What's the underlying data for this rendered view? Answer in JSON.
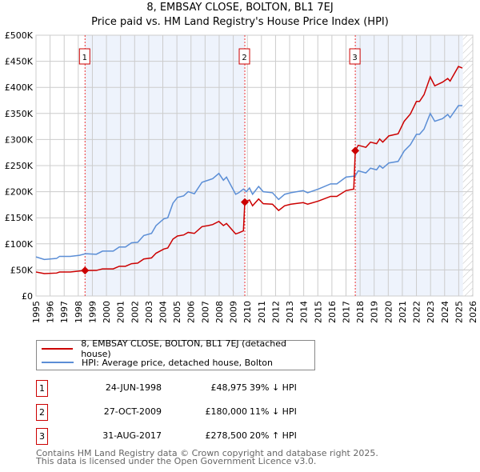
{
  "title": "8, EMBSAY CLOSE, BOLTON, BL1 7EJ",
  "subtitle": "Price paid vs. HM Land Registry's House Price Index (HPI)",
  "chart_data": {
    "type": "line",
    "xlim": [
      1995,
      2026
    ],
    "ylim": [
      0,
      500000
    ],
    "y_ticks": [
      {
        "v": 0,
        "l": "£0"
      },
      {
        "v": 50000,
        "l": "£50K"
      },
      {
        "v": 100000,
        "l": "£100K"
      },
      {
        "v": 150000,
        "l": "£150K"
      },
      {
        "v": 200000,
        "l": "£200K"
      },
      {
        "v": 250000,
        "l": "£250K"
      },
      {
        "v": 300000,
        "l": "£300K"
      },
      {
        "v": 350000,
        "l": "£350K"
      },
      {
        "v": 400000,
        "l": "£400K"
      },
      {
        "v": 450000,
        "l": "£450K"
      },
      {
        "v": 500000,
        "l": "£500K"
      }
    ],
    "x_ticks": [
      "1995",
      "1996",
      "1997",
      "1998",
      "1999",
      "2000",
      "2001",
      "2002",
      "2003",
      "2004",
      "2005",
      "2006",
      "2007",
      "2008",
      "2009",
      "2010",
      "2011",
      "2012",
      "2013",
      "2014",
      "2015",
      "2016",
      "2017",
      "2018",
      "2019",
      "2020",
      "2021",
      "2022",
      "2023",
      "2024",
      "2025",
      "2026"
    ],
    "forecast_from": 2025.3,
    "series": [
      {
        "name": "8, EMBSAY CLOSE, BOLTON, BL1 7EJ (detached house)",
        "color": "#cc0000",
        "x": [
          1995.0,
          1995.59,
          1996.46,
          1996.67,
          1997.43,
          1998.09,
          1998.48,
          1999.28,
          1999.72,
          2000.48,
          2000.91,
          2001.35,
          2001.78,
          2002.22,
          2002.65,
          2003.2,
          2003.52,
          2004.07,
          2004.35,
          2004.72,
          2005.04,
          2005.48,
          2005.8,
          2006.24,
          2006.78,
          2007.22,
          2007.54,
          2007.98,
          2008.3,
          2008.52,
          2009.17,
          2009.39,
          2009.72,
          2009.82,
          2010.15,
          2010.37,
          2010.8,
          2011.13,
          2011.78,
          2012.22,
          2012.65,
          2013.09,
          2013.96,
          2014.28,
          2015.04,
          2015.91,
          2016.35,
          2017.0,
          2017.55,
          2017.66,
          2017.87,
          2018.41,
          2018.74,
          2019.17,
          2019.39,
          2019.61,
          2020.04,
          2020.7,
          2021.13,
          2021.57,
          2022.0,
          2022.22,
          2022.54,
          2022.98,
          2023.3,
          2023.85,
          2024.22,
          2024.39,
          2024.98,
          2025.26
        ],
        "y": [
          46000,
          43000,
          44000,
          46000,
          46000,
          48000,
          48975,
          49000,
          52000,
          52000,
          57000,
          57000,
          62000,
          63000,
          71000,
          73000,
          82000,
          90000,
          92000,
          109000,
          115000,
          117000,
          122000,
          120000,
          133000,
          135000,
          137000,
          143000,
          135000,
          139000,
          119000,
          121000,
          125000,
          180000,
          184000,
          173000,
          186000,
          177000,
          176000,
          164000,
          173000,
          176000,
          179000,
          176000,
          182000,
          191000,
          191000,
          202000,
          205000,
          278500,
          289000,
          285000,
          295000,
          292000,
          301000,
          295000,
          307000,
          311000,
          335000,
          349000,
          373000,
          373000,
          386000,
          420000,
          403000,
          410000,
          417000,
          412000,
          440000,
          437000
        ]
      },
      {
        "name": "HPI: Average price, detached house, Bolton",
        "color": "#5b8ed6",
        "x": [
          1995.0,
          1995.59,
          1996.46,
          1996.67,
          1997.43,
          1998.09,
          1998.52,
          1999.28,
          1999.72,
          2000.48,
          2000.91,
          2001.35,
          2001.78,
          2002.22,
          2002.65,
          2003.2,
          2003.52,
          2004.07,
          2004.35,
          2004.72,
          2005.04,
          2005.48,
          2005.8,
          2006.24,
          2006.78,
          2007.22,
          2007.54,
          2007.98,
          2008.3,
          2008.52,
          2009.17,
          2009.39,
          2009.72,
          2009.93,
          2010.15,
          2010.37,
          2010.8,
          2011.13,
          2011.78,
          2012.22,
          2012.65,
          2013.09,
          2013.96,
          2014.28,
          2015.04,
          2015.91,
          2016.35,
          2017.0,
          2017.65,
          2017.87,
          2018.41,
          2018.74,
          2019.17,
          2019.39,
          2019.61,
          2020.04,
          2020.7,
          2021.13,
          2021.57,
          2022.0,
          2022.22,
          2022.54,
          2022.98,
          2023.3,
          2023.85,
          2024.22,
          2024.39,
          2024.98,
          2025.26
        ],
        "y": [
          75000,
          70000,
          72000,
          76000,
          76000,
          78000,
          81000,
          80000,
          86000,
          86000,
          94000,
          94000,
          102000,
          103000,
          116000,
          120000,
          135000,
          148000,
          150000,
          178000,
          189000,
          192000,
          200000,
          196000,
          218000,
          222000,
          225000,
          235000,
          222000,
          228000,
          195000,
          198000,
          205000,
          200000,
          207000,
          195000,
          210000,
          200000,
          198000,
          185000,
          195000,
          198000,
          202000,
          198000,
          205000,
          215000,
          215000,
          228000,
          230000,
          240000,
          236000,
          245000,
          242000,
          250000,
          245000,
          255000,
          258000,
          278000,
          290000,
          310000,
          310000,
          320000,
          350000,
          335000,
          340000,
          348000,
          342000,
          365000,
          365000
        ]
      }
    ],
    "sales": [
      {
        "n": "1",
        "x": 1998.48,
        "y": 48975,
        "date": "24-JUN-1998",
        "price": "£48,975",
        "hpi": "39% ↓ HPI"
      },
      {
        "n": "2",
        "x": 2009.82,
        "y": 180000,
        "date": "27-OCT-2009",
        "price": "£180,000",
        "hpi": "11% ↓ HPI"
      },
      {
        "n": "3",
        "x": 2017.66,
        "y": 278500,
        "date": "31-AUG-2017",
        "price": "£278,500",
        "hpi": "20% ↑ HPI"
      }
    ]
  },
  "legend": {
    "property": "8, EMBSAY CLOSE, BOLTON, BL1 7EJ (detached house)",
    "hpi": "HPI: Average price, detached house, Bolton"
  },
  "footer": {
    "line1": "Contains HM Land Registry data © Crown copyright and database right 2025.",
    "line2": "This data is licensed under the Open Government Licence v3.0."
  }
}
